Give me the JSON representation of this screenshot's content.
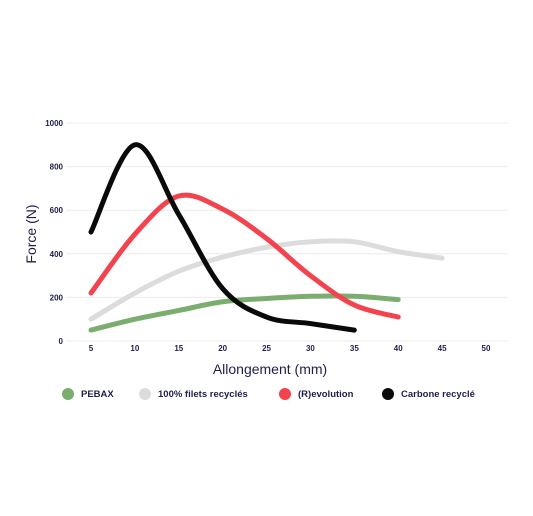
{
  "chart_data": {
    "type": "line",
    "title": "",
    "xlabel": "Allongement (mm)",
    "ylabel": "Force (N)",
    "xlim": [
      5,
      50
    ],
    "ylim": [
      0,
      1000
    ],
    "xticks": [
      5,
      10,
      15,
      20,
      25,
      30,
      35,
      40,
      45,
      50
    ],
    "yticks": [
      0,
      200,
      400,
      600,
      800,
      1000
    ],
    "grid": true,
    "legend": "bottom",
    "series": [
      {
        "name": "PEBAX",
        "color": "#7aad6e",
        "x": [
          5,
          10,
          15,
          20,
          25,
          30,
          35,
          40
        ],
        "y": [
          50,
          100,
          140,
          180,
          195,
          205,
          205,
          190
        ]
      },
      {
        "name": "100% filets recyclés",
        "color": "#dcdcdc",
        "x": [
          5,
          10,
          15,
          20,
          25,
          30,
          35,
          40,
          45
        ],
        "y": [
          100,
          220,
          320,
          385,
          430,
          455,
          455,
          410,
          380
        ]
      },
      {
        "name": "(R)evolution",
        "color": "#f2434f",
        "x": [
          5,
          10,
          15,
          20,
          25,
          30,
          35,
          40
        ],
        "y": [
          220,
          490,
          665,
          605,
          470,
          300,
          165,
          110
        ]
      },
      {
        "name": "Carbone recyclé",
        "color": "#0a0a0a",
        "x": [
          5,
          10,
          15,
          20,
          25,
          30,
          35
        ],
        "y": [
          500,
          900,
          580,
          240,
          110,
          80,
          50
        ]
      }
    ]
  }
}
